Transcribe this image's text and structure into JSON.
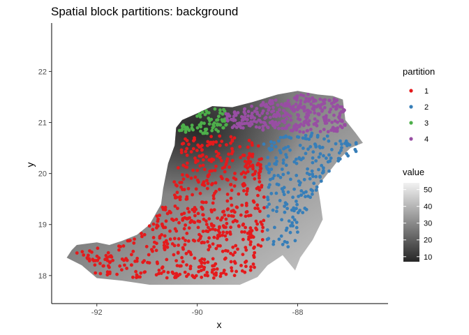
{
  "chart_data": {
    "type": "scatter",
    "title": "Spatial block partitions: background",
    "xlabel": "x",
    "ylabel": "y",
    "xlim": [
      -92.9,
      -86.2
    ],
    "ylim": [
      17.45,
      22.95
    ],
    "x_ticks": [
      -92,
      -90,
      -88
    ],
    "x_tick_labels": [
      "-92",
      "-90",
      "-88"
    ],
    "y_ticks": [
      18,
      19,
      20,
      21,
      22
    ],
    "y_tick_labels": [
      "18",
      "19",
      "20",
      "21",
      "22"
    ],
    "grid": false,
    "legend_placement": "right",
    "background_raster": {
      "variable": "value",
      "region": "Yucatan Peninsula",
      "color_scale": "grayscale",
      "legend_title": "value",
      "range": [
        7,
        54
      ],
      "ticks": [
        10,
        20,
        30,
        40,
        50
      ],
      "tick_labels": [
        "10",
        "20",
        "30",
        "40",
        "50"
      ],
      "low_color": "#262626",
      "high_color": "#f2f2f2",
      "outline_lonlat": [
        [
          -92.4,
          18.6
        ],
        [
          -92.0,
          18.65
        ],
        [
          -91.75,
          18.6
        ],
        [
          -91.5,
          18.68
        ],
        [
          -91.2,
          18.8
        ],
        [
          -90.95,
          19.0
        ],
        [
          -90.72,
          19.4
        ],
        [
          -90.68,
          19.7
        ],
        [
          -90.58,
          20.2
        ],
        [
          -90.45,
          20.55
        ],
        [
          -90.42,
          20.9
        ],
        [
          -90.3,
          21.05
        ],
        [
          -90.0,
          21.18
        ],
        [
          -89.7,
          21.32
        ],
        [
          -89.3,
          21.3
        ],
        [
          -88.9,
          21.4
        ],
        [
          -88.4,
          21.55
        ],
        [
          -88.0,
          21.62
        ],
        [
          -87.6,
          21.55
        ],
        [
          -87.3,
          21.52
        ],
        [
          -87.1,
          21.45
        ],
        [
          -87.05,
          21.05
        ],
        [
          -86.85,
          20.8
        ],
        [
          -86.7,
          20.6
        ],
        [
          -86.95,
          20.5
        ],
        [
          -87.2,
          20.25
        ],
        [
          -87.4,
          20.0
        ],
        [
          -87.6,
          19.75
        ],
        [
          -87.55,
          19.45
        ],
        [
          -87.5,
          19.1
        ],
        [
          -87.7,
          18.7
        ],
        [
          -87.95,
          18.35
        ],
        [
          -88.05,
          18.1
        ],
        [
          -88.3,
          18.4
        ],
        [
          -88.6,
          18.2
        ],
        [
          -88.8,
          17.97
        ],
        [
          -89.15,
          17.82
        ],
        [
          -90.0,
          17.82
        ],
        [
          -90.95,
          17.82
        ],
        [
          -91.5,
          17.9
        ],
        [
          -92.0,
          17.95
        ],
        [
          -92.3,
          18.2
        ],
        [
          -92.6,
          18.35
        ],
        [
          -92.5,
          18.5
        ]
      ]
    },
    "partition_legend_title": "partition",
    "series": [
      {
        "name": "1",
        "color": "#e41a1c",
        "region_lonlat": [
          [
            -92.45,
            18.52
          ],
          [
            -92.0,
            18.55
          ],
          [
            -91.55,
            18.6
          ],
          [
            -91.15,
            18.8
          ],
          [
            -90.85,
            19.1
          ],
          [
            -90.55,
            19.55
          ],
          [
            -90.45,
            20.0
          ],
          [
            -90.35,
            20.4
          ],
          [
            -90.32,
            20.72
          ],
          [
            -89.7,
            20.75
          ],
          [
            -89.1,
            20.72
          ],
          [
            -88.75,
            20.55
          ],
          [
            -88.7,
            20.1
          ],
          [
            -88.65,
            19.6
          ],
          [
            -88.65,
            19.1
          ],
          [
            -88.7,
            18.6
          ],
          [
            -88.9,
            18.05
          ],
          [
            -89.4,
            17.95
          ],
          [
            -90.2,
            17.95
          ],
          [
            -91.0,
            17.95
          ],
          [
            -91.6,
            17.98
          ],
          [
            -92.05,
            18.05
          ],
          [
            -92.35,
            18.25
          ]
        ],
        "count": 640
      },
      {
        "name": "2",
        "color": "#377eb8",
        "region_lonlat": [
          [
            -88.75,
            20.65
          ],
          [
            -88.3,
            20.75
          ],
          [
            -87.9,
            20.8
          ],
          [
            -87.5,
            20.78
          ],
          [
            -87.1,
            20.65
          ],
          [
            -86.75,
            20.6
          ],
          [
            -86.85,
            20.38
          ],
          [
            -87.2,
            20.2
          ],
          [
            -87.5,
            19.9
          ],
          [
            -87.75,
            19.4
          ],
          [
            -87.95,
            18.95
          ],
          [
            -88.1,
            18.55
          ],
          [
            -88.25,
            18.4
          ],
          [
            -88.5,
            18.45
          ],
          [
            -88.62,
            18.7
          ],
          [
            -88.62,
            19.3
          ],
          [
            -88.62,
            19.9
          ],
          [
            -88.68,
            20.4
          ]
        ],
        "count": 220
      },
      {
        "name": "3",
        "color": "#4daf4a",
        "region_lonlat": [
          [
            -90.4,
            20.85
          ],
          [
            -90.2,
            21.05
          ],
          [
            -89.9,
            21.2
          ],
          [
            -89.65,
            21.3
          ],
          [
            -89.4,
            21.25
          ],
          [
            -89.4,
            20.95
          ],
          [
            -89.55,
            20.8
          ],
          [
            -89.9,
            20.78
          ],
          [
            -90.25,
            20.78
          ]
        ],
        "count": 70
      },
      {
        "name": "4",
        "color": "#984ea3",
        "region_lonlat": [
          [
            -89.45,
            21.18
          ],
          [
            -89.1,
            21.28
          ],
          [
            -88.7,
            21.4
          ],
          [
            -88.3,
            21.52
          ],
          [
            -87.9,
            21.58
          ],
          [
            -87.55,
            21.5
          ],
          [
            -87.15,
            21.45
          ],
          [
            -87.05,
            21.2
          ],
          [
            -87.05,
            20.85
          ],
          [
            -87.4,
            20.8
          ],
          [
            -87.8,
            20.8
          ],
          [
            -88.2,
            20.85
          ],
          [
            -88.6,
            20.85
          ],
          [
            -89.0,
            20.85
          ],
          [
            -89.3,
            20.88
          ],
          [
            -89.42,
            21.0
          ]
        ],
        "count": 330
      }
    ]
  }
}
